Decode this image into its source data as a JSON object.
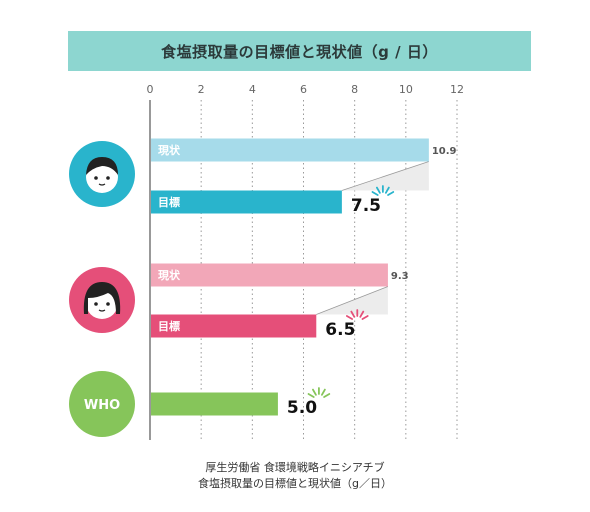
{
  "title": "食塩摂取量の目標値と現状値（g / 日）",
  "chart_data": {
    "type": "bar",
    "title": "食塩摂取量の目標値と現状値（g / 日）",
    "xlim": [
      0,
      12
    ],
    "x_ticks": [
      "0",
      "2",
      "4",
      "6",
      "8",
      "10",
      "12"
    ],
    "grid": "dotted vertical",
    "groups": [
      {
        "icon": "man-face-icon",
        "circle_color": "#29b4cc",
        "bars": [
          {
            "label": "現状",
            "value": 10.9,
            "value_label": "10.9",
            "color": "#a6dbea"
          },
          {
            "label": "目標",
            "value": 7.5,
            "value_label": "7.5",
            "color": "#29b4cc"
          }
        ]
      },
      {
        "icon": "woman-face-icon",
        "circle_color": "#e54f79",
        "bars": [
          {
            "label": "現状",
            "value": 9.3,
            "value_label": "9.3",
            "color": "#f2a7b8"
          },
          {
            "label": "目標",
            "value": 6.5,
            "value_label": "6.5",
            "color": "#e54f79"
          }
        ]
      },
      {
        "icon": "who-badge",
        "circle_label": "WHO",
        "circle_color": "#86c55a",
        "bars": [
          {
            "label": "",
            "value": 5.0,
            "value_label": "5.0",
            "color": "#86c55a"
          }
        ]
      }
    ]
  },
  "source": {
    "line1": "厚生労働省 食環境戦略イニシアチブ",
    "line2": "食塩摂取量の目標値と現状値（g／日）"
  }
}
